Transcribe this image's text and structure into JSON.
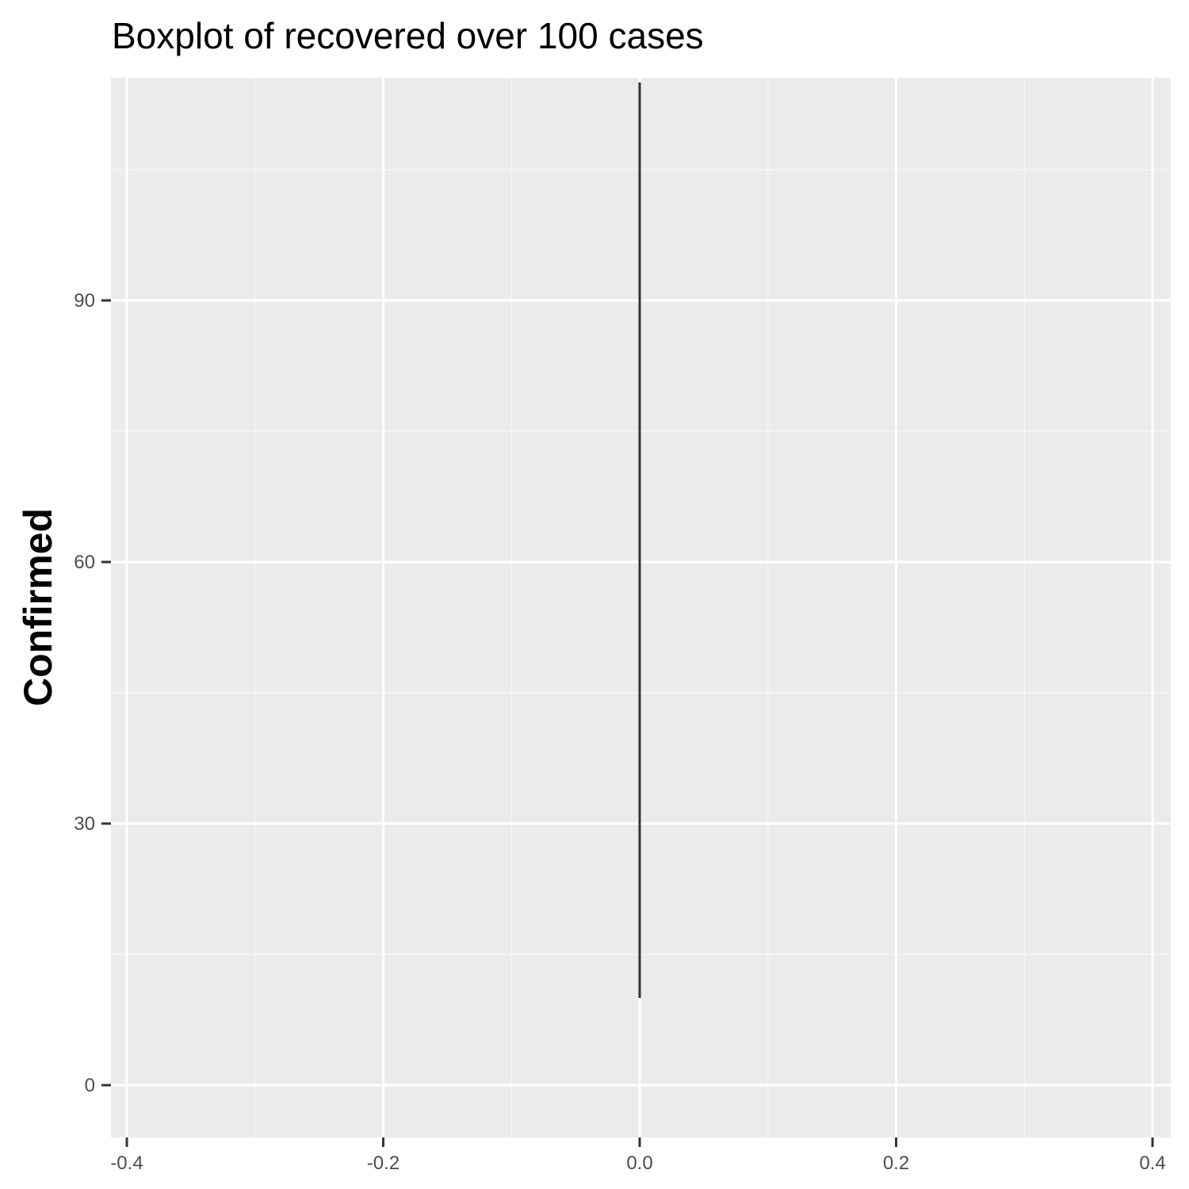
{
  "chart_data": {
    "type": "boxplot",
    "title": "Boxplot of recovered over 100 cases",
    "xlabel": "",
    "ylabel": "Confirmed",
    "xlim": [
      -0.4,
      0.4
    ],
    "ylim": [
      -5,
      115
    ],
    "x_ticks": [
      -0.4,
      -0.2,
      0.0,
      0.2,
      0.4
    ],
    "x_tick_labels": [
      "-0.4",
      "-0.2",
      "0.0",
      "0.2",
      "0.4"
    ],
    "y_ticks": [
      0,
      30,
      60,
      90
    ],
    "y_tick_labels": [
      "0",
      "30",
      "60",
      "90"
    ],
    "grid": true,
    "series": [
      {
        "x": 0.0,
        "whisker_low": 10,
        "whisker_high": 115
      }
    ],
    "colors": {
      "panel_background": "#ebebeb",
      "grid_major": "#ffffff",
      "grid_minor": "#f5f5f5",
      "box_line": "#333333",
      "tick_text": "#4d4d4d"
    }
  }
}
